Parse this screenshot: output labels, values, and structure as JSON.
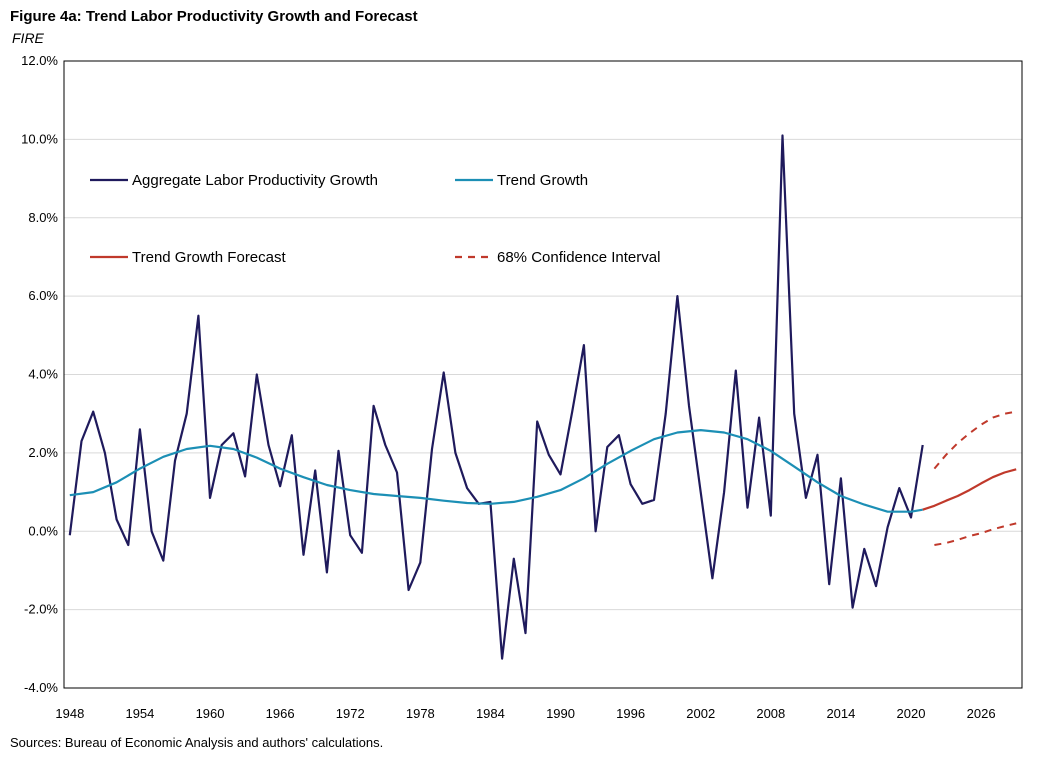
{
  "header": {
    "title": "Figure 4a: Trend Labor Productivity Growth and Forecast",
    "subtitle": "FIRE"
  },
  "footer": {
    "source": "Sources: Bureau of Economic Analysis and authors' calculations."
  },
  "chart_data": {
    "type": "line",
    "title": "Figure 4a: Trend Labor Productivity Growth and Forecast",
    "subtitle": "FIRE",
    "xlabel": "",
    "ylabel": "",
    "xlim": [
      1947.5,
      2029.5
    ],
    "ylim": [
      -4.0,
      12.0
    ],
    "grid": "horizontal",
    "legend_placement": "top-left",
    "y_ticks": [
      -4,
      -2,
      0,
      2,
      4,
      6,
      8,
      10,
      12
    ],
    "y_tick_labels": [
      "-4.0%",
      "-2.0%",
      "0.0%",
      "2.0%",
      "4.0%",
      "6.0%",
      "8.0%",
      "10.0%",
      "12.0%"
    ],
    "x_ticks": [
      1948,
      1954,
      1960,
      1966,
      1972,
      1978,
      1984,
      1990,
      1996,
      2002,
      2008,
      2014,
      2020,
      2026
    ],
    "x_tick_labels": [
      "1948",
      "1954",
      "1960",
      "1966",
      "1972",
      "1978",
      "1984",
      "1990",
      "1996",
      "2002",
      "2008",
      "2014",
      "2020",
      "2026"
    ],
    "series": [
      {
        "name": "Aggregate Labor Productivity Growth",
        "color": "#1f1a5c",
        "style": "solid",
        "x": [
          1948,
          1949,
          1950,
          1951,
          1952,
          1953,
          1954,
          1955,
          1956,
          1957,
          1958,
          1959,
          1960,
          1961,
          1962,
          1963,
          1964,
          1965,
          1966,
          1967,
          1968,
          1969,
          1970,
          1971,
          1972,
          1973,
          1974,
          1975,
          1976,
          1977,
          1978,
          1979,
          1980,
          1981,
          1982,
          1983,
          1984,
          1985,
          1986,
          1987,
          1988,
          1989,
          1990,
          1991,
          1992,
          1993,
          1994,
          1995,
          1996,
          1997,
          1998,
          1999,
          2000,
          2001,
          2002,
          2003,
          2004,
          2005,
          2006,
          2007,
          2008,
          2009,
          2010,
          2011,
          2012,
          2013,
          2014,
          2015,
          2016,
          2017,
          2018,
          2019,
          2020,
          2021
        ],
        "values": [
          -0.1,
          2.3,
          3.05,
          2.0,
          0.3,
          -0.35,
          2.6,
          0.0,
          -0.75,
          1.8,
          3.0,
          5.5,
          0.85,
          2.2,
          2.5,
          1.4,
          4.0,
          2.2,
          1.15,
          2.45,
          -0.6,
          1.55,
          -1.05,
          2.05,
          -0.1,
          -0.55,
          3.2,
          2.2,
          1.5,
          -1.5,
          -0.8,
          2.1,
          4.05,
          2.0,
          1.1,
          0.7,
          0.75,
          -3.25,
          -0.7,
          -2.6,
          2.8,
          1.95,
          1.45,
          3.05,
          4.75,
          0.0,
          2.15,
          2.45,
          1.2,
          0.7,
          0.8,
          3.0,
          6.0,
          3.2,
          1.0,
          -1.2,
          1.0,
          4.1,
          0.6,
          2.9,
          0.4,
          10.1,
          3.0,
          0.85,
          1.95,
          -1.35,
          1.35,
          -1.95,
          -0.45,
          -1.4,
          0.1,
          1.1,
          0.35,
          2.2
        ]
      },
      {
        "name": "Trend Growth",
        "color": "#1c8fb5",
        "style": "solid",
        "x": [
          1948,
          1950,
          1952,
          1954,
          1956,
          1958,
          1960,
          1962,
          1964,
          1966,
          1968,
          1970,
          1972,
          1974,
          1976,
          1978,
          1980,
          1982,
          1984,
          1986,
          1988,
          1990,
          1992,
          1994,
          1996,
          1998,
          2000,
          2002,
          2004,
          2006,
          2008,
          2010,
          2012,
          2014,
          2016,
          2018,
          2020,
          2021
        ],
        "values": [
          0.92,
          1.0,
          1.25,
          1.6,
          1.9,
          2.1,
          2.18,
          2.1,
          1.88,
          1.6,
          1.38,
          1.18,
          1.05,
          0.95,
          0.9,
          0.85,
          0.78,
          0.72,
          0.7,
          0.75,
          0.88,
          1.05,
          1.35,
          1.72,
          2.05,
          2.35,
          2.52,
          2.58,
          2.52,
          2.35,
          2.05,
          1.65,
          1.25,
          0.9,
          0.68,
          0.5,
          0.5,
          0.55
        ]
      },
      {
        "name": "Trend Growth Forecast",
        "color": "#c0392b",
        "style": "solid",
        "x": [
          2021,
          2022,
          2023,
          2024,
          2025,
          2026,
          2027,
          2028,
          2029
        ],
        "values": [
          0.55,
          0.65,
          0.78,
          0.9,
          1.05,
          1.22,
          1.38,
          1.5,
          1.58
        ]
      },
      {
        "name": "68% Confidence Interval",
        "color": "#c0392b",
        "style": "dashed",
        "x": [
          2022,
          2023,
          2024,
          2025,
          2026,
          2027,
          2028,
          2029
        ],
        "values": [
          1.6,
          1.95,
          2.25,
          2.5,
          2.72,
          2.9,
          3.0,
          3.05
        ]
      },
      {
        "name": "68% Confidence Interval (lower)",
        "color": "#c0392b",
        "style": "dashed",
        "x": [
          2022,
          2023,
          2024,
          2025,
          2026,
          2027,
          2028,
          2029
        ],
        "values": [
          -0.35,
          -0.3,
          -0.22,
          -0.12,
          -0.05,
          0.05,
          0.13,
          0.2
        ]
      }
    ],
    "legend": [
      {
        "label": "Aggregate Labor Productivity Growth",
        "color": "#1f1a5c",
        "style": "solid"
      },
      {
        "label": "Trend Growth",
        "color": "#1c8fb5",
        "style": "solid"
      },
      {
        "label": "Trend Growth Forecast",
        "color": "#c0392b",
        "style": "solid"
      },
      {
        "label": "68% Confidence Interval",
        "color": "#c0392b",
        "style": "dashed"
      }
    ]
  }
}
